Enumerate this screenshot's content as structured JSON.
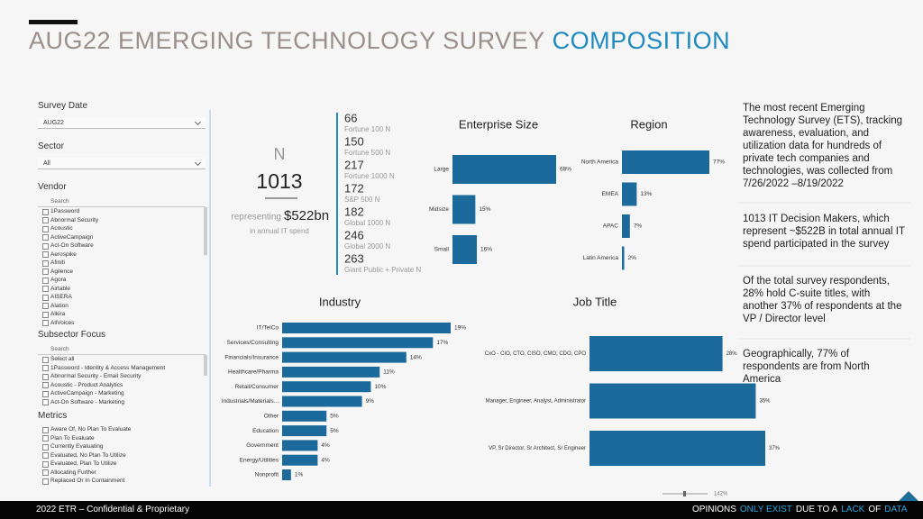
{
  "header": {
    "title": "AUG22 EMERGING TECHNOLOGY SURVEY",
    "title_highlight": "COMPOSITION"
  },
  "filters": [
    {
      "label": "Survey Date",
      "selected": "AUG22"
    },
    {
      "label": "Sector",
      "selected": "All"
    },
    {
      "label": "Vendor",
      "search": "Search",
      "items": [
        "1Password",
        "Abnormal Security",
        "Acoustic",
        "ActiveCampaign",
        "Act-On Software",
        "Aerospike",
        "Afiniti",
        "Agilence",
        "Agora",
        "Airtable",
        "AISERA",
        "Alation",
        "Alkira",
        "AllVoices"
      ]
    },
    {
      "label": "Subsector Focus",
      "search": "Search",
      "items": [
        "Select all",
        "1Password - Identity & Access Management",
        "Abnormal Security - Email Security",
        "Acoustic - Product Analytics",
        "ActiveCampaign - Marketing",
        "Act-On Software - Marketing"
      ]
    },
    {
      "label": "Metrics",
      "items": [
        "Aware Of, No Plan To Evaluate",
        "Plan To Evaluate",
        "Currently Evaluating",
        "Evaluated, No Plan To Utilize",
        "Evaluated, Plan To Utilize",
        "Allocating Further",
        "Replaced Or In Containment"
      ]
    }
  ],
  "kpi": {
    "label": "N",
    "value": 1013,
    "prefix": "representing",
    "spend": "$522bn",
    "suffix": "in annual IT spend"
  },
  "stats": [
    {
      "value": 66,
      "label": "Fortune 100 N"
    },
    {
      "value": 150,
      "label": "Fortune 500 N"
    },
    {
      "value": 217,
      "label": "Fortune 1000 N"
    },
    {
      "value": 172,
      "label": "S&P 500 N"
    },
    {
      "value": 182,
      "label": "Global 1000 N"
    },
    {
      "value": 246,
      "label": "Global 2000 N"
    },
    {
      "value": 263,
      "label": "Giant Public + Private N"
    }
  ],
  "chart_data": [
    {
      "type": "bar",
      "orientation": "horizontal",
      "title": "Enterprise Size",
      "categories": [
        "Large",
        "Midsize",
        "Small"
      ],
      "values": [
        68,
        15,
        16
      ],
      "value_labels": [
        "68%",
        "15%",
        "16%"
      ],
      "color": "#1c6a9c"
    },
    {
      "type": "bar",
      "orientation": "horizontal",
      "title": "Region",
      "categories": [
        "North America",
        "EMEA",
        "APAC",
        "Latin America"
      ],
      "values": [
        77,
        13,
        7,
        2
      ],
      "value_labels": [
        "77%",
        "13%",
        "7%",
        "2%"
      ],
      "color": "#1c6a9c"
    },
    {
      "type": "bar",
      "orientation": "horizontal",
      "title": "Industry",
      "categories": [
        "IT/TelCo",
        "Services/Consulting",
        "Financials/Insurance",
        "Healthcare/Pharma",
        "Retail/Consumer",
        "Industrials/Materials...",
        "Other",
        "Education",
        "Government",
        "Energy/Utilities",
        "Nonprofit"
      ],
      "values": [
        19,
        17,
        14,
        11,
        10,
        9,
        5,
        5,
        4,
        4,
        1
      ],
      "value_labels": [
        "19%",
        "17%",
        "14%",
        "11%",
        "10%",
        "9%",
        "5%",
        "5%",
        "4%",
        "4%",
        "1%"
      ],
      "color": "#1c6a9c"
    },
    {
      "type": "bar",
      "orientation": "horizontal",
      "title": "Job Title",
      "categories": [
        "CxO - CIO, CTO, CISO, CMO, CDO, CPO",
        "Manager, Engineer, Analyst, Administrator",
        "VP, Sr Director, Sr Architect, Sr Engineer"
      ],
      "values": [
        28,
        35,
        37
      ],
      "value_labels": [
        "28%",
        "35%",
        "37%"
      ],
      "color": "#1c6a9c"
    }
  ],
  "notes": [
    "The most recent Emerging Technology Survey (ETS), tracking awareness, evaluation, and utilization data for hundreds of private tech companies and technologies, was collected from 7/26/2022 –8/19/2022",
    "1013 IT Decision Makers, which represent ~$522B in total annual IT spend participated in the survey",
    "Of the total survey respondents, 28% hold C-suite titles, with another 37% of respondents at the VP / Director level",
    "Geographically, 77% of respondents are from North America"
  ],
  "zoom": "142%",
  "footer": {
    "left": "2022 ETR – Confidential & Proprietary",
    "tagline": [
      "OPINIONS",
      "ONLY EXIST",
      "DUE TO A",
      "LACK",
      "OF",
      "DATA"
    ]
  }
}
